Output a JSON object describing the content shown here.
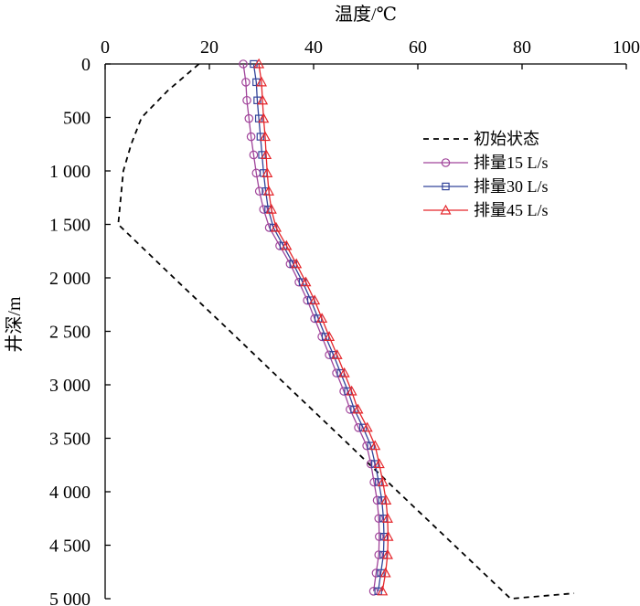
{
  "chart_data": {
    "type": "line",
    "title": "",
    "xlabel": "温度/℃",
    "ylabel": "井深/m",
    "xlim": [
      0,
      100
    ],
    "ylim": [
      0,
      5000
    ],
    "x_axis_position": "top",
    "y_axis_inverted": true,
    "grid": false,
    "legend_position": "right",
    "x_ticks": [
      0,
      20,
      40,
      60,
      80,
      100
    ],
    "x_tick_labels": [
      "0",
      "20",
      "40",
      "60",
      "80",
      "100"
    ],
    "y_ticks": [
      0,
      500,
      1000,
      1500,
      2000,
      2500,
      3000,
      3500,
      4000,
      4500,
      5000
    ],
    "y_tick_labels": [
      "0",
      "500",
      "1 000",
      "1 500",
      "2 000",
      "2 500",
      "3 000",
      "3 500",
      "4 000",
      "4 500",
      "5 000"
    ],
    "series": [
      {
        "name": "初始状态",
        "style": "dashed",
        "marker": "none",
        "color": "#000000",
        "points": [
          [
            18.0,
            0
          ],
          [
            12.0,
            250
          ],
          [
            7.0,
            500
          ],
          [
            5.0,
            750
          ],
          [
            3.5,
            1000
          ],
          [
            3.0,
            1250
          ],
          [
            2.5,
            1500
          ],
          [
            13.2,
            2000
          ],
          [
            24.0,
            2500
          ],
          [
            34.7,
            3000
          ],
          [
            45.5,
            3500
          ],
          [
            56.2,
            4000
          ],
          [
            67.0,
            4500
          ],
          [
            77.8,
            5000
          ],
          [
            90.0,
            4950
          ]
        ]
      },
      {
        "name": "排量15 L/s",
        "style": "solid",
        "marker": "circle",
        "color": "#a0449a",
        "points": [
          [
            26.5,
            0
          ],
          [
            27.0,
            170
          ],
          [
            27.2,
            340
          ],
          [
            27.6,
            510
          ],
          [
            28.0,
            680
          ],
          [
            28.5,
            850
          ],
          [
            29.0,
            1020
          ],
          [
            29.6,
            1190
          ],
          [
            30.4,
            1360
          ],
          [
            31.5,
            1530
          ],
          [
            33.5,
            1700
          ],
          [
            35.5,
            1870
          ],
          [
            37.2,
            2040
          ],
          [
            38.8,
            2210
          ],
          [
            40.2,
            2380
          ],
          [
            41.6,
            2550
          ],
          [
            43.0,
            2720
          ],
          [
            44.4,
            2890
          ],
          [
            45.8,
            3060
          ],
          [
            47.0,
            3230
          ],
          [
            48.6,
            3400
          ],
          [
            50.2,
            3570
          ],
          [
            51.0,
            3740
          ],
          [
            51.6,
            3910
          ],
          [
            52.2,
            4080
          ],
          [
            52.5,
            4250
          ],
          [
            52.6,
            4420
          ],
          [
            52.5,
            4590
          ],
          [
            52.0,
            4760
          ],
          [
            51.5,
            4930
          ]
        ]
      },
      {
        "name": "排量30 L/s",
        "style": "solid",
        "marker": "square",
        "color": "#33449a",
        "points": [
          [
            28.5,
            0
          ],
          [
            29.0,
            170
          ],
          [
            29.2,
            340
          ],
          [
            29.5,
            510
          ],
          [
            29.8,
            680
          ],
          [
            30.1,
            850
          ],
          [
            30.4,
            1020
          ],
          [
            30.8,
            1190
          ],
          [
            31.3,
            1360
          ],
          [
            32.3,
            1530
          ],
          [
            34.2,
            1700
          ],
          [
            36.1,
            1870
          ],
          [
            37.9,
            2040
          ],
          [
            39.5,
            2210
          ],
          [
            40.9,
            2380
          ],
          [
            42.3,
            2550
          ],
          [
            43.8,
            2720
          ],
          [
            45.2,
            2890
          ],
          [
            46.6,
            3060
          ],
          [
            47.8,
            3230
          ],
          [
            49.5,
            3400
          ],
          [
            51.0,
            3570
          ],
          [
            51.8,
            3740
          ],
          [
            52.5,
            3910
          ],
          [
            53.1,
            4080
          ],
          [
            53.4,
            4250
          ],
          [
            53.5,
            4420
          ],
          [
            53.4,
            4590
          ],
          [
            52.9,
            4760
          ],
          [
            52.4,
            4930
          ]
        ]
      },
      {
        "name": "排量45 L/s",
        "style": "solid",
        "marker": "triangle",
        "color": "#e5262b",
        "points": [
          [
            29.5,
            0
          ],
          [
            30.0,
            170
          ],
          [
            30.2,
            340
          ],
          [
            30.4,
            510
          ],
          [
            30.7,
            680
          ],
          [
            30.9,
            850
          ],
          [
            31.1,
            1020
          ],
          [
            31.4,
            1190
          ],
          [
            31.9,
            1360
          ],
          [
            32.8,
            1530
          ],
          [
            34.8,
            1700
          ],
          [
            36.7,
            1870
          ],
          [
            38.5,
            2040
          ],
          [
            40.2,
            2210
          ],
          [
            41.6,
            2380
          ],
          [
            43.0,
            2550
          ],
          [
            44.5,
            2720
          ],
          [
            45.9,
            2890
          ],
          [
            47.3,
            3060
          ],
          [
            48.5,
            3230
          ],
          [
            50.3,
            3400
          ],
          [
            51.8,
            3570
          ],
          [
            52.6,
            3740
          ],
          [
            53.3,
            3910
          ],
          [
            53.9,
            4080
          ],
          [
            54.2,
            4250
          ],
          [
            54.3,
            4420
          ],
          [
            54.2,
            4590
          ],
          [
            53.8,
            4760
          ],
          [
            53.2,
            4930
          ]
        ]
      }
    ]
  }
}
